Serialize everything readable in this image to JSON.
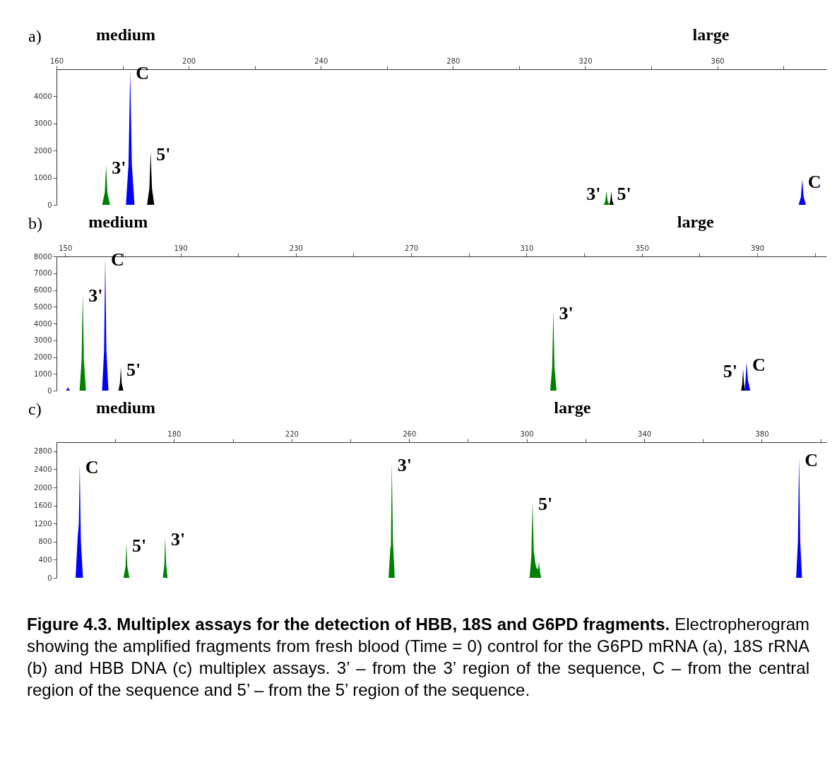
{
  "chart_data": [
    {
      "type": "area",
      "title": "a)",
      "xlim": [
        160,
        393
      ],
      "ylim": [
        0,
        5000
      ],
      "xticks": [
        160,
        {
          "value": 180,
          "label": null
        },
        200,
        {
          "value": 220,
          "label": null
        },
        240,
        {
          "value": 260,
          "label": null
        },
        280,
        {
          "value": 300,
          "label": null
        },
        320,
        {
          "value": 340,
          "label": null
        },
        360,
        {
          "value": 380,
          "label": null
        }
      ],
      "yticks": [
        0,
        1000,
        2000,
        3000,
        4000
      ],
      "annotations": [
        "medium",
        "large",
        {
          "text": "C",
          "x": 182.3,
          "y": 4950
        },
        {
          "text": "3'",
          "x": 175,
          "y": 1450
        },
        {
          "text": "5'",
          "x": 188.5,
          "y": 1950
        },
        {
          "text": "3'",
          "x": 326.4,
          "y": 500
        },
        {
          "text": "5'",
          "x": 327.9,
          "y": 500
        },
        {
          "text": "C",
          "x": 385.7,
          "y": 950
        }
      ],
      "series": [
        {
          "color": "#0000ff",
          "x": [
            181,
            181.8,
            182.3,
            182.8,
            183.6,
            384.6,
            385.3,
            385.7,
            386.1,
            386.8
          ],
          "values": [
            0,
            1500,
            4950,
            1500,
            0,
            0,
            300,
            950,
            300,
            0
          ]
        },
        {
          "color": "#008000",
          "x": [
            173.8,
            174.6,
            175,
            175.4,
            176.2,
            325.6,
            326.1,
            326.4,
            326.8,
            327.3
          ],
          "values": [
            0,
            450,
            1450,
            450,
            0,
            0,
            150,
            500,
            150,
            0
          ]
        },
        {
          "color": "#000000",
          "x": [
            187.4,
            188.1,
            188.5,
            188.9,
            189.6,
            327.3,
            327.6,
            327.9,
            328.2,
            328.7
          ],
          "values": [
            0,
            600,
            1950,
            600,
            0,
            0,
            150,
            500,
            150,
            0
          ]
        }
      ]
    },
    {
      "type": "area",
      "title": "b)",
      "xlim": [
        147,
        414
      ],
      "ylim": [
        0,
        8000
      ],
      "xticks": [
        150,
        {
          "value": 170,
          "label": null
        },
        190,
        {
          "value": 210,
          "label": null
        },
        230,
        {
          "value": 250,
          "label": null
        },
        270,
        {
          "value": 290,
          "label": null
        },
        310,
        {
          "value": 330,
          "label": null
        },
        350,
        {
          "value": 370,
          "label": null
        },
        390,
        {
          "value": 410,
          "label": null
        }
      ],
      "yticks": [
        0,
        1000,
        2000,
        3000,
        4000,
        5000,
        6000,
        7000,
        8000
      ],
      "annotations": [
        "medium",
        "large",
        {
          "text": "3'",
          "x": 156.1,
          "y": 5800
        },
        {
          "text": "C",
          "x": 163.9,
          "y": 7950
        },
        {
          "text": "5'",
          "x": 169.3,
          "y": 1400
        },
        {
          "text": "3'",
          "x": 319.3,
          "y": 4750
        },
        {
          "text": "5'",
          "x": 385.1,
          "y": 1300
        },
        {
          "text": "C",
          "x": 386.3,
          "y": 1700
        }
      ],
      "series": [
        {
          "color": "#0000ff",
          "x": [
            150.3,
            151,
            151.6,
            162.8,
            163.5,
            163.9,
            164.3,
            165,
            385.6,
            386,
            386.3,
            386.8,
            387.6
          ],
          "values": [
            0,
            200,
            0,
            0,
            2400,
            7950,
            2400,
            0,
            0,
            700,
            1700,
            600,
            0
          ]
        },
        {
          "color": "#008000",
          "x": [
            155,
            155.7,
            156.1,
            156.5,
            157.2,
            318.2,
            318.9,
            319.3,
            319.7,
            320.4
          ],
          "values": [
            0,
            1800,
            5800,
            1800,
            0,
            0,
            1400,
            4750,
            1400,
            0
          ]
        },
        {
          "color": "#000000",
          "x": [
            168.5,
            169,
            169.3,
            169.6,
            170.2,
            384.4,
            384.8,
            385.1,
            385.4,
            385.7
          ],
          "values": [
            0,
            450,
            1400,
            450,
            0,
            0,
            400,
            1300,
            500,
            0
          ]
        }
      ]
    },
    {
      "type": "area",
      "title": "c)",
      "xlim": [
        140,
        402
      ],
      "ylim": [
        0,
        3000
      ],
      "xticks": [
        {
          "value": 160,
          "label": null
        },
        180,
        {
          "value": 200,
          "label": null
        },
        220,
        {
          "value": 240,
          "label": null
        },
        260,
        {
          "value": 280,
          "label": null
        },
        300,
        {
          "value": 320,
          "label": null
        },
        340,
        {
          "value": 360,
          "label": null
        },
        380,
        {
          "value": 400,
          "label": null
        }
      ],
      "yticks": [
        0,
        400,
        800,
        1200,
        1600,
        2000,
        2400,
        2800
      ],
      "annotations": [
        "medium",
        "large",
        {
          "text": "C",
          "x": 147.9,
          "y": 2500
        },
        {
          "text": "5'",
          "x": 163.8,
          "y": 760
        },
        {
          "text": "3'",
          "x": 177,
          "y": 900
        },
        {
          "text": "3'",
          "x": 254.1,
          "y": 2550
        },
        {
          "text": "5'",
          "x": 302,
          "y": 1680
        },
        {
          "text": "C",
          "x": 392.7,
          "y": 2650
        }
      ],
      "series": [
        {
          "color": "#0000ff",
          "x": [
            146.5,
            147.2,
            147.6,
            147.9,
            148.3,
            149,
            391.7,
            392.3,
            392.7,
            393.1,
            393.7
          ],
          "values": [
            0,
            900,
            1200,
            2500,
            800,
            0,
            0,
            800,
            2650,
            800,
            0
          ]
        },
        {
          "color": "#008000",
          "x": [
            162.8,
            163.5,
            163.8,
            164.1,
            164.8,
            176.2,
            176.7,
            177,
            177.3,
            177.8,
            253,
            253.6,
            253.8,
            254.1,
            254.5,
            255.1,
            301,
            301.6,
            302,
            302.4,
            303,
            303.5,
            303.9,
            304.2,
            304.6,
            305
          ],
          "values": [
            0,
            250,
            760,
            250,
            0,
            0,
            300,
            900,
            300,
            0,
            0,
            650,
            700,
            2550,
            800,
            0,
            0,
            500,
            1680,
            600,
            300,
            200,
            200,
            350,
            100,
            0
          ]
        }
      ]
    },
    {
      "type": "other",
      "title": "Figure 4.3. Multiplex assays for the detection of HBB, 18S and G6PD fragments.",
      "subtitle": "Electropherogram showing the amplified fragments from fresh blood (Time = 0) control for the G6PD mRNA (a), 18S rRNA (b) and HBB DNA (c) multiplex assays. 3’ – from the 3’ region of the sequence, C – from the central region of the sequence and 5’ – from the 5’ region of the sequence."
    }
  ]
}
